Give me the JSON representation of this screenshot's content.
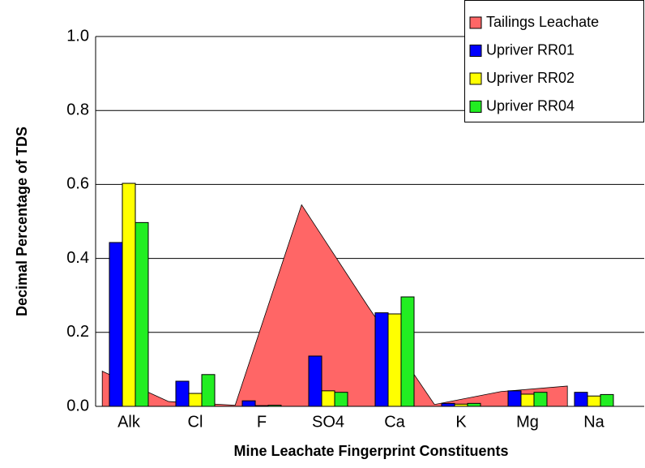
{
  "chart_data": {
    "type": "bar",
    "xlabel": "Mine Leachate Fingerprint Constituents",
    "ylabel": "Decimal Percentage of TDS",
    "categories": [
      "Alk",
      "Cl",
      "F",
      "SO4",
      "Ca",
      "K",
      "Mg",
      "Na"
    ],
    "series": [
      {
        "name": "Tailings Leachate",
        "type": "area",
        "color": "#ff6666",
        "values": [
          0.095,
          0.013,
          0.003,
          0.545,
          0.27,
          0.005,
          0.04,
          0.055
        ]
      },
      {
        "name": "Upriver RR01",
        "type": "bar",
        "color": "#0000ff",
        "values": [
          0.443,
          0.068,
          0.015,
          0.136,
          0.253,
          0.008,
          0.042,
          0.038
        ]
      },
      {
        "name": "Upriver RR02",
        "type": "bar",
        "color": "#ffff00",
        "values": [
          0.603,
          0.035,
          0.002,
          0.042,
          0.25,
          0.006,
          0.033,
          0.028
        ]
      },
      {
        "name": "Upriver RR04",
        "type": "bar",
        "color": "#22ee22",
        "values": [
          0.497,
          0.086,
          0.003,
          0.038,
          0.296,
          0.008,
          0.038,
          0.032
        ]
      }
    ],
    "ylim": [
      0,
      1
    ],
    "yticks": [
      {
        "value": 0,
        "label": "0.0"
      },
      {
        "value": 0.2,
        "label": "0.2"
      },
      {
        "value": 0.4,
        "label": "0.4"
      },
      {
        "value": 0.6,
        "label": "0.6"
      },
      {
        "value": 0.8,
        "label": "0.8"
      },
      {
        "value": 1,
        "label": "1.0"
      }
    ],
    "grid": true,
    "legend": "upper right"
  }
}
